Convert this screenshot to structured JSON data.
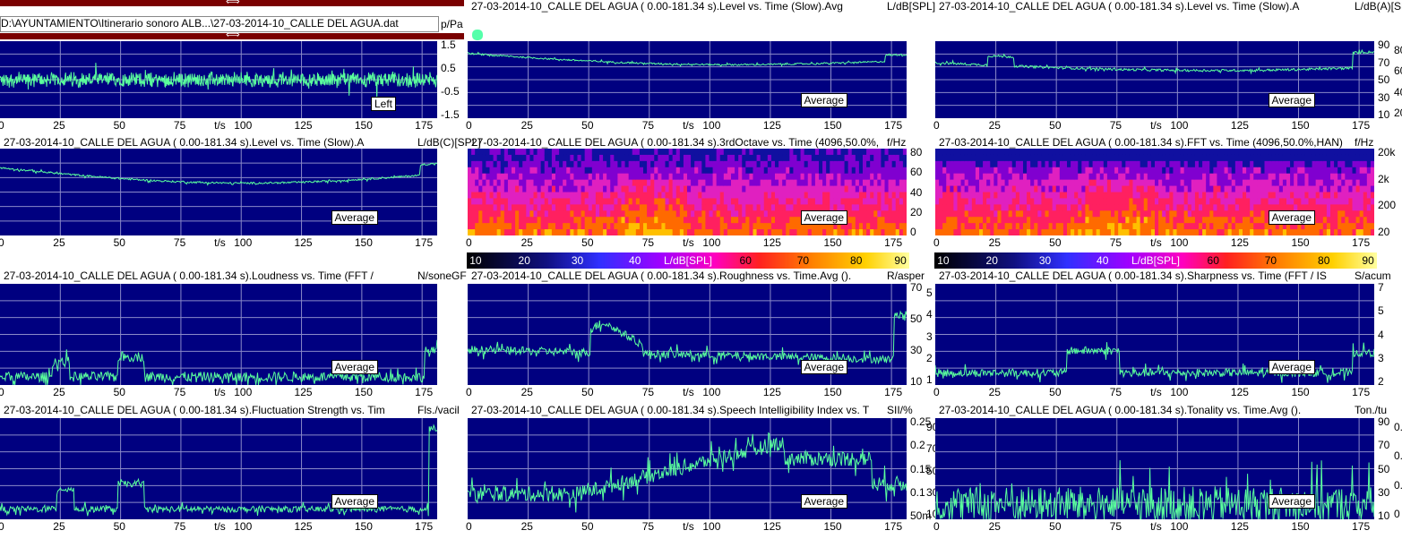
{
  "file_path": "D:\\AYUNTAMIENTO\\Itinerario sonoro ALB...\\27-03-2014-10_CALLE DEL AGUA.dat",
  "x_unit": "t/s",
  "x_ticks": [
    "0",
    "25",
    "50",
    "75",
    "100",
    "125",
    "150",
    "175"
  ],
  "colors": {
    "plot_bg": "#000080",
    "trace": "#5aff9c",
    "grid": "#8a8ac8"
  },
  "colorbar": {
    "unit": "L/dB[SPL]",
    "ticks": [
      "10",
      "20",
      "30",
      "40",
      "60",
      "70",
      "80",
      "90"
    ]
  },
  "panels": [
    {
      "id": "p1",
      "title": "",
      "unit": "p/Pa",
      "badge": "Left",
      "yticks": [
        "1.5",
        "0.5",
        "-0.5",
        "-1.5"
      ]
    },
    {
      "id": "p2",
      "title": "27-03-2014-10_CALLE DEL AGUA ( 0.00-181.34 s).Level vs. Time (Slow).Avg",
      "unit": "L/dB[SPL]",
      "badge": "Average",
      "yticks": []
    },
    {
      "id": "p3",
      "title": "27-03-2014-10_CALLE DEL AGUA ( 0.00-181.34 s).Level vs. Time (Slow).A",
      "unit": "L/dB(A)[SPL]",
      "badge": "Average",
      "yticks": [
        "90",
        "70",
        "50",
        "30",
        "10"
      ],
      "yticks2": [
        "80",
        "60",
        "40",
        "20"
      ]
    },
    {
      "id": "p4",
      "title": "27-03-2014-10_CALLE DEL AGUA ( 0.00-181.34 s).Level vs. Time (Slow).A",
      "unit": "L/dB(C)[SPL]",
      "badge": "Average",
      "yticks": []
    },
    {
      "id": "p5",
      "title": "27-03-2014-10_CALLE DEL AGUA ( 0.00-181.34 s).3rdOctave vs. Time (4096,50.0%,",
      "unit": "f/Hz",
      "badge": "Average",
      "yticks": [
        "80",
        "60",
        "40",
        "20",
        "0"
      ]
    },
    {
      "id": "p6",
      "title": "27-03-2014-10_CALLE DEL AGUA ( 0.00-181.34 s).FFT vs. Time (4096,50.0%,HAN)",
      "unit": "f/Hz",
      "badge": "Average",
      "yticks": [
        "20k",
        "2k",
        "200",
        "20"
      ]
    },
    {
      "id": "p7",
      "title": "27-03-2014-10_CALLE DEL AGUA ( 0.00-181.34 s).Loudness vs. Time (FFT /",
      "unit": "N/soneGF",
      "badge": "Average",
      "yticks": []
    },
    {
      "id": "p8",
      "title": "27-03-2014-10_CALLE DEL AGUA ( 0.00-181.34 s).Roughness vs. Time.Avg ().",
      "unit": "R/asper",
      "badge": "Average",
      "yticks": [
        "70",
        "50",
        "30",
        "10"
      ],
      "yticks2": [
        "5",
        "4",
        "3",
        "2",
        "1"
      ]
    },
    {
      "id": "p9",
      "title": "27-03-2014-10_CALLE DEL AGUA ( 0.00-181.34 s).Sharpness vs. Time (FFT / IS",
      "unit": "S/acum",
      "badge": "Average",
      "yticks": [
        "7",
        "5",
        "4",
        "3",
        "2"
      ]
    },
    {
      "id": "p10",
      "title": "27-03-2014-10_CALLE DEL AGUA ( 0.00-181.34 s).Fluctuation Strength vs. Tim",
      "unit": "Fls./vacil",
      "badge": "Average",
      "yticks": []
    },
    {
      "id": "p11",
      "title": "27-03-2014-10_CALLE DEL AGUA ( 0.00-181.34 s).Speech Intelligibility Index vs. T",
      "unit": "SII/%",
      "badge": "Average",
      "yticks": [
        "0.25",
        "0.2",
        "0.15",
        "0.1",
        "50m"
      ],
      "yticks2": [
        "90",
        "70",
        "50",
        "30",
        "10"
      ]
    },
    {
      "id": "p12",
      "title": "27-03-2014-10_CALLE DEL AGUA ( 0.00-181.34 s).Tonality vs. Time.Avg ().",
      "unit": "Ton./tu",
      "badge": "Average",
      "yticks": [
        "90",
        "70",
        "50",
        "30",
        "10"
      ],
      "yticks2": [
        "0.6",
        "0.4",
        "0.2",
        "0"
      ]
    }
  ],
  "chart_data": [
    {
      "type": "line",
      "title": "",
      "xlabel": "t/s",
      "ylabel": "p/Pa",
      "xlim": [
        0,
        181.34
      ],
      "ylim": [
        -1.5,
        2.0
      ],
      "legend": "Left",
      "grid": true
    },
    {
      "type": "line",
      "title": "27-03-2014-10_CALLE DEL AGUA ( 0.00-181.34 s).Level vs. Time (Slow).Avg",
      "xlabel": "t/s",
      "ylabel": "L/dB[SPL]",
      "xlim": [
        0,
        181.34
      ],
      "ylim": [
        10,
        90
      ],
      "legend": "Average",
      "grid": true
    },
    {
      "type": "line",
      "title": "27-03-2014-10_CALLE DEL AGUA ( 0.00-181.34 s).Level vs. Time (Slow).A",
      "xlabel": "t/s",
      "ylabel": "L/dB(A)[SPL]",
      "xlim": [
        0,
        181.34
      ],
      "ylim": [
        10,
        90
      ],
      "legend": "Average",
      "grid": true
    },
    {
      "type": "line",
      "title": "27-03-2014-10_CALLE DEL AGUA ( 0.00-181.34 s).Level vs. Time (Slow).A",
      "xlabel": "t/s",
      "ylabel": "L/dB(C)[SPL]",
      "xlim": [
        0,
        181.34
      ],
      "ylim": [
        0,
        85
      ],
      "legend": "Average",
      "grid": true
    },
    {
      "type": "heatmap",
      "title": "27-03-2014-10_CALLE DEL AGUA ( 0.00-181.34 s).3rdOctave vs. Time (4096,50.0%,",
      "xlabel": "t/s",
      "ylabel": "f/Hz",
      "xlim": [
        0,
        181.34
      ],
      "zlabel": "L/dB[SPL]",
      "zlim": [
        10,
        90
      ]
    },
    {
      "type": "heatmap",
      "title": "27-03-2014-10_CALLE DEL AGUA ( 0.00-181.34 s).FFT vs. Time (4096,50.0%,HAN)",
      "xlabel": "t/s",
      "ylabel": "f/Hz",
      "xlim": [
        0,
        181.34
      ],
      "zlabel": "L/dB[SPL]",
      "zlim": [
        10,
        90
      ]
    },
    {
      "type": "line",
      "title": "27-03-2014-10_CALLE DEL AGUA ( 0.00-181.34 s).Loudness vs. Time (FFT /",
      "xlabel": "t/s",
      "ylabel": "N/soneGF",
      "xlim": [
        0,
        181.34
      ],
      "ylim": [
        0,
        75
      ],
      "legend": "Average",
      "grid": true
    },
    {
      "type": "line",
      "title": "27-03-2014-10_CALLE DEL AGUA ( 0.00-181.34 s).Roughness vs. Time.Avg ().",
      "xlabel": "t/s",
      "ylabel": "R/asper",
      "xlim": [
        0,
        181.34
      ],
      "ylim": [
        0,
        5.3
      ],
      "legend": "Average",
      "grid": true
    },
    {
      "type": "line",
      "title": "27-03-2014-10_CALLE DEL AGUA ( 0.00-181.34 s).Sharpness vs. Time (FFT / IS",
      "xlabel": "t/s",
      "ylabel": "S/acum",
      "xlim": [
        0,
        181.34
      ],
      "ylim": [
        1,
        7
      ],
      "legend": "Average",
      "grid": true
    },
    {
      "type": "line",
      "title": "27-03-2014-10_CALLE DEL AGUA ( 0.00-181.34 s).Fluctuation Strength vs. Tim",
      "xlabel": "t/s",
      "ylabel": "Fls./vacil",
      "xlim": [
        0,
        181.34
      ],
      "ylim": [
        0,
        0.3
      ],
      "legend": "Average",
      "grid": true
    },
    {
      "type": "line",
      "title": "27-03-2014-10_CALLE DEL AGUA ( 0.00-181.34 s).Speech Intelligibility Index vs. T",
      "xlabel": "t/s",
      "ylabel": "SII/%",
      "xlim": [
        0,
        181.34
      ],
      "ylim": [
        0,
        95
      ],
      "legend": "Average",
      "grid": true
    },
    {
      "type": "line",
      "title": "27-03-2014-10_CALLE DEL AGUA ( 0.00-181.34 s).Tonality vs. Time.Avg ().",
      "xlabel": "t/s",
      "ylabel": "Ton./tu",
      "xlim": [
        0,
        181.34
      ],
      "ylim": [
        0,
        0.65
      ],
      "legend": "Average",
      "grid": true
    }
  ]
}
